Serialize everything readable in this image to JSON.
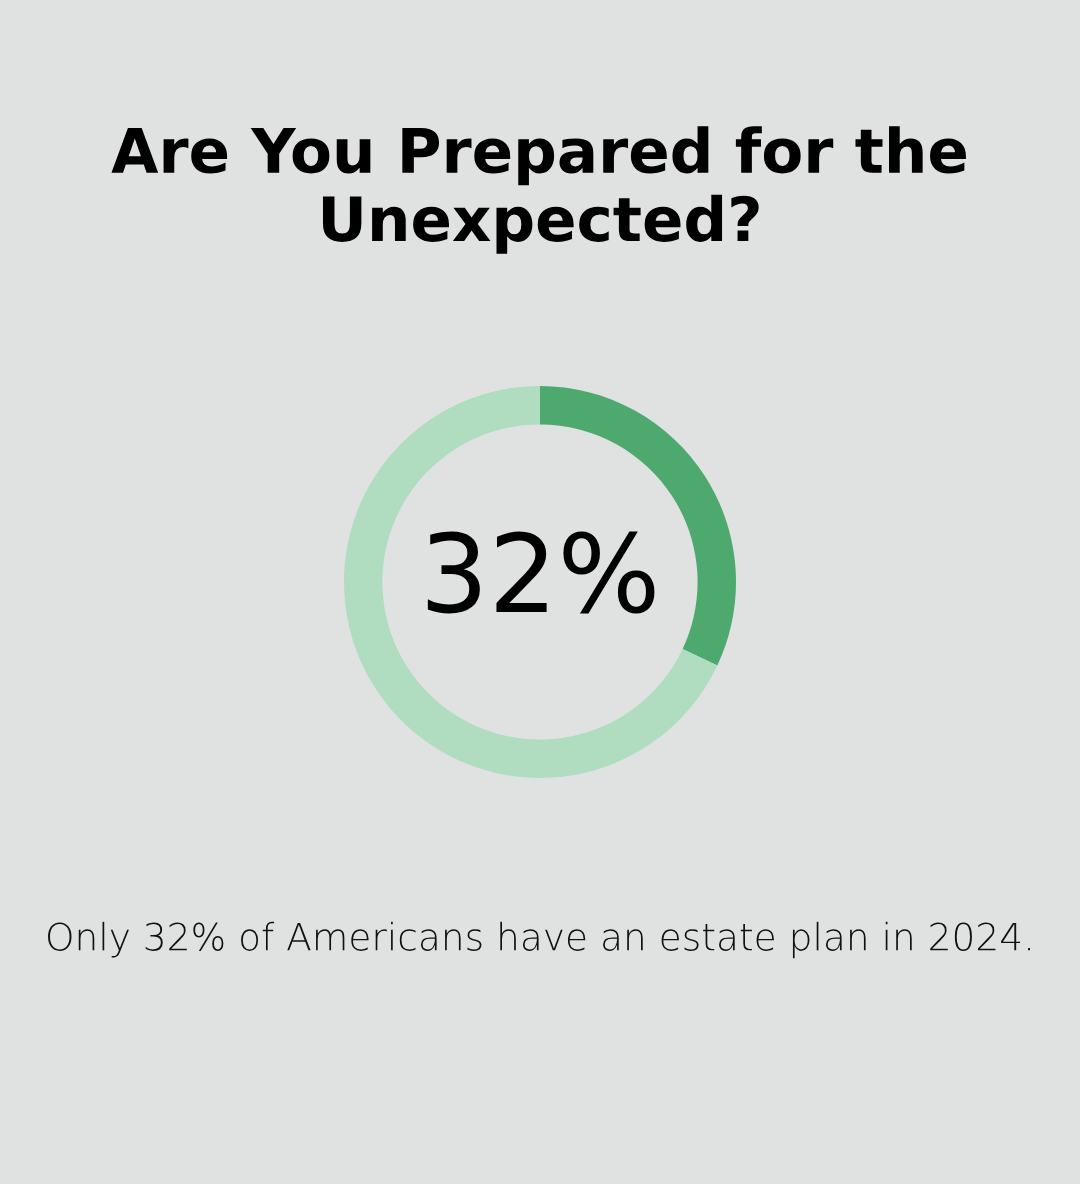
{
  "chart_data": {
    "type": "donut",
    "title": "Are You Prepared for the Unexpected?",
    "categories": [
      null,
      null
    ],
    "values": [
      32,
      68
    ],
    "colors": [
      "#4ea96e",
      "#b0dcc0"
    ],
    "annotations": [
      "32%",
      "Only 32% of Americans have an estate plan in 2024."
    ]
  }
}
